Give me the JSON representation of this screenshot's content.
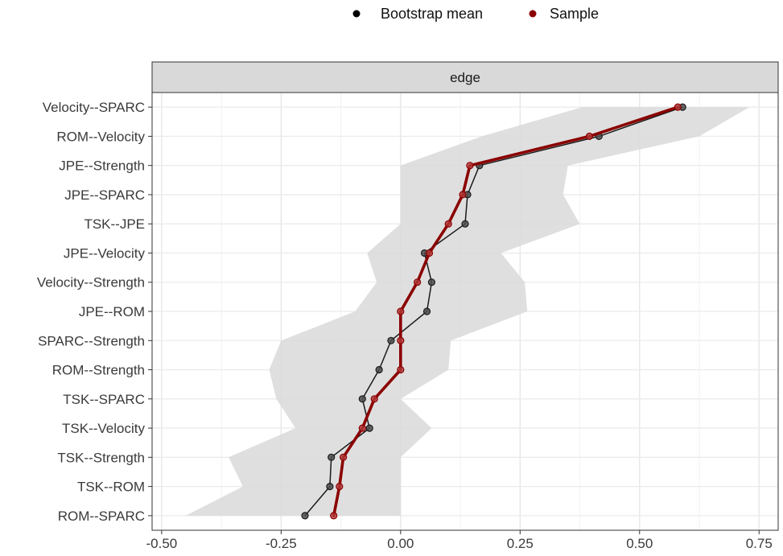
{
  "chart_data": {
    "type": "line",
    "panel_title": "edge",
    "categories": [
      "Velocity--SPARC",
      "ROM--Velocity",
      "JPE--Strength",
      "JPE--SPARC",
      "TSK--JPE",
      "JPE--Velocity",
      "Velocity--Strength",
      "JPE--ROM",
      "SPARC--Strength",
      "ROM--Strength",
      "TSK--SPARC",
      "TSK--Velocity",
      "TSK--Strength",
      "TSK--ROM",
      "ROM--SPARC"
    ],
    "x_ticks": [
      "-0.50",
      "-0.25",
      "0.00",
      "0.25",
      "0.50",
      "0.75"
    ],
    "x_tick_values": [
      -0.5,
      -0.25,
      0,
      0.25,
      0.5,
      0.75
    ],
    "xlim": [
      -0.52,
      0.79
    ],
    "series": [
      {
        "name": "Bootstrap mean",
        "color": "#1a1a1a",
        "values": [
          0.59,
          0.415,
          0.165,
          0.14,
          0.135,
          0.05,
          0.065,
          0.055,
          -0.02,
          -0.045,
          -0.08,
          -0.065,
          -0.145,
          -0.148,
          -0.2
        ]
      },
      {
        "name": "Sample",
        "color": "#8b0000",
        "values": [
          0.58,
          0.395,
          0.145,
          0.13,
          0.1,
          0.06,
          0.035,
          0.0,
          0.0,
          0.0,
          -0.055,
          -0.08,
          -0.12,
          -0.128,
          -0.14
        ]
      }
    ],
    "ci_band": {
      "lower": [
        0.38,
        0.17,
        0.0,
        0.0,
        0.0,
        -0.07,
        -0.05,
        -0.095,
        -0.25,
        -0.275,
        -0.26,
        -0.22,
        -0.36,
        -0.33,
        -0.45
      ],
      "upper": [
        0.73,
        0.625,
        0.35,
        0.34,
        0.375,
        0.21,
        0.26,
        0.265,
        0.105,
        0.1,
        0.0,
        0.065,
        0.0,
        0.0,
        0.0
      ],
      "color": "#d9d9d9"
    },
    "legend": {
      "position": "top",
      "items": [
        {
          "label": "Bootstrap mean",
          "color": "#000000"
        },
        {
          "label": "Sample",
          "color": "#8b0000"
        }
      ]
    },
    "grid": true
  }
}
